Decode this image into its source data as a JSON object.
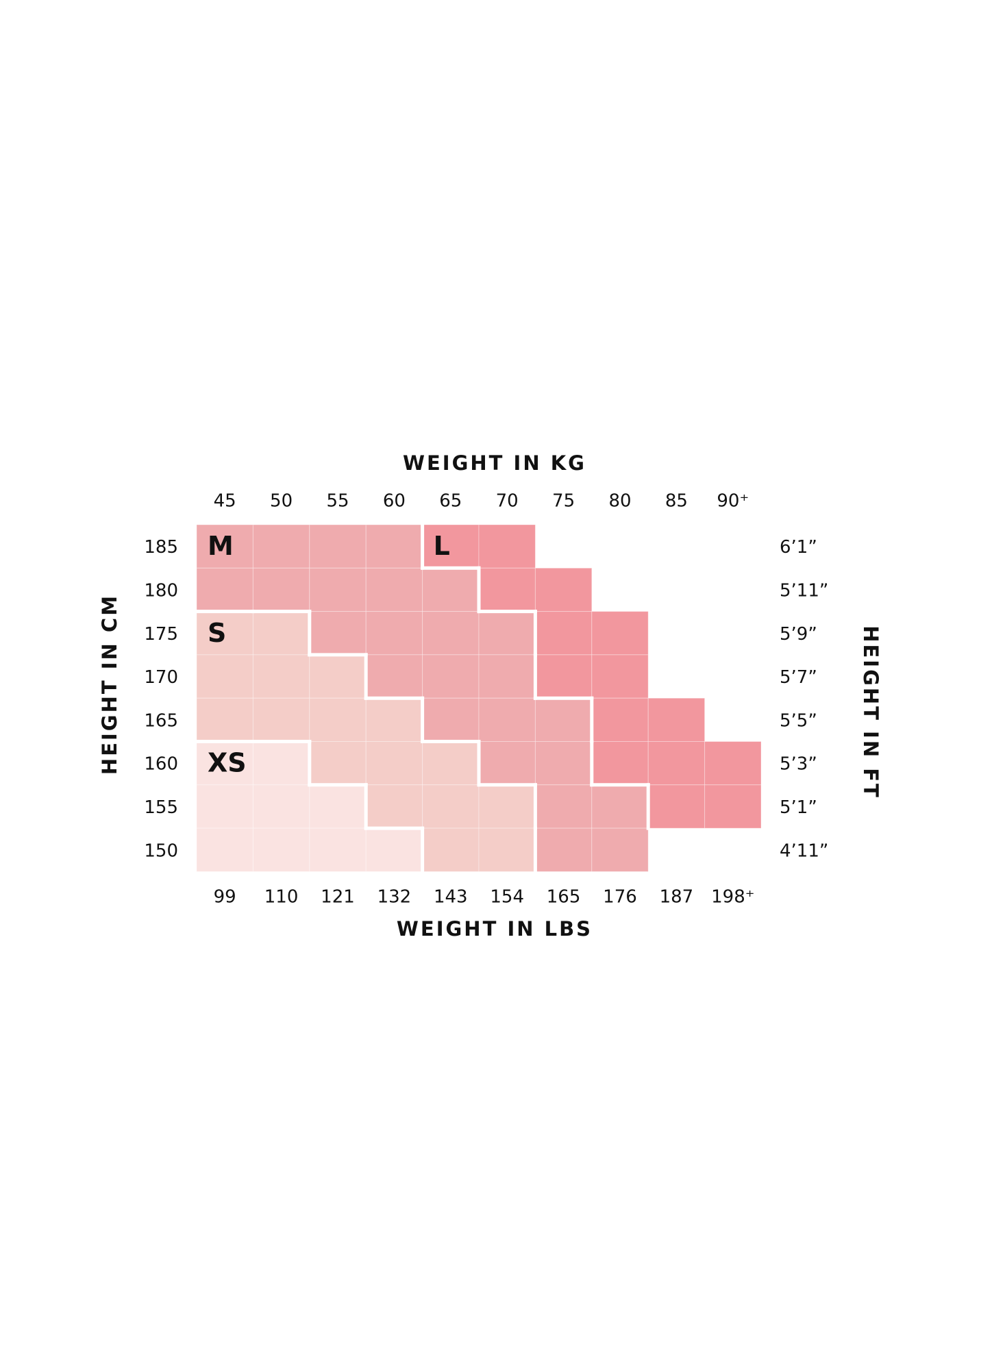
{
  "titles": {
    "top": "WEIGHT IN KG",
    "bottom": "WEIGHT IN LBS",
    "left": "HEIGHT IN CM",
    "right": "HEIGHT IN FT"
  },
  "kg": [
    "45",
    "50",
    "55",
    "60",
    "65",
    "70",
    "75",
    "80",
    "85",
    "90⁺"
  ],
  "lbs": [
    "99",
    "110",
    "121",
    "132",
    "143",
    "154",
    "165",
    "176",
    "187",
    "198⁺"
  ],
  "cm": [
    "185",
    "180",
    "175",
    "170",
    "165",
    "160",
    "155",
    "150"
  ],
  "ft": [
    "6’1”",
    "5’11”",
    "5’9”",
    "5’7”",
    "5’5”",
    "5’3”",
    "5’1”",
    "4’11”"
  ],
  "sizes": [
    {
      "label": "XS",
      "color": "#fae3e1"
    },
    {
      "label": "S",
      "color": "#f4cdc8"
    },
    {
      "label": "M",
      "color": "#efabae"
    },
    {
      "label": "L",
      "color": "#f2979e"
    }
  ],
  "grid": [
    [
      2,
      2,
      2,
      2,
      3,
      3,
      null,
      null,
      null,
      null
    ],
    [
      2,
      2,
      2,
      2,
      2,
      3,
      3,
      null,
      null,
      null
    ],
    [
      1,
      1,
      2,
      2,
      2,
      2,
      3,
      3,
      null,
      null
    ],
    [
      1,
      1,
      1,
      2,
      2,
      2,
      3,
      3,
      null,
      null
    ],
    [
      1,
      1,
      1,
      1,
      2,
      2,
      2,
      3,
      3,
      null
    ],
    [
      0,
      0,
      1,
      1,
      1,
      2,
      2,
      3,
      3,
      3
    ],
    [
      0,
      0,
      0,
      1,
      1,
      1,
      2,
      2,
      3,
      3
    ],
    [
      0,
      0,
      0,
      0,
      1,
      1,
      2,
      2,
      null,
      null
    ]
  ]
}
